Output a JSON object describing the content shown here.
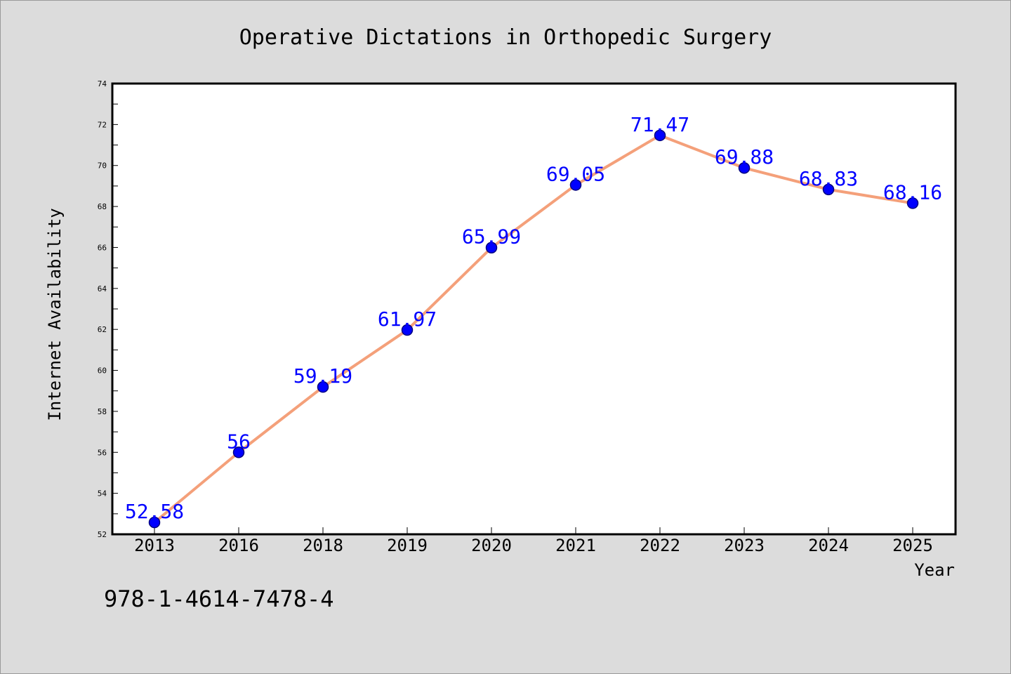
{
  "chart_data": {
    "type": "line",
    "title": "Operative Dictations in Orthopedic Surgery",
    "xlabel": "Year",
    "ylabel": "Internet Availability",
    "categories": [
      "2013",
      "2016",
      "2018",
      "2019",
      "2020",
      "2021",
      "2022",
      "2023",
      "2024",
      "2025"
    ],
    "series": [
      {
        "values": [
          52.58,
          56,
          59.19,
          61.97,
          65.99,
          69.05,
          71.47,
          69.88,
          68.83,
          68.16
        ],
        "labels": [
          "52.58",
          "56",
          "59.19",
          "61.97",
          "65.99",
          "69.05",
          "71.47",
          "69.88",
          "68.83",
          "68.16"
        ]
      }
    ],
    "ylim": [
      52,
      74
    ],
    "yticks": [
      "52",
      "54",
      "56",
      "58",
      "60",
      "62",
      "64",
      "66",
      "68",
      "70",
      "72",
      "74"
    ],
    "grid": false,
    "legend": "none",
    "colors": {
      "line": "#f4a07a",
      "marker": "#0000ff",
      "marker_edge": "#000080",
      "data_label": "#0000ff",
      "plot_background": "#ffffff",
      "page_background": "#dcdcdc"
    }
  },
  "footer": {
    "identifier": "978-1-4614-7478-4"
  }
}
